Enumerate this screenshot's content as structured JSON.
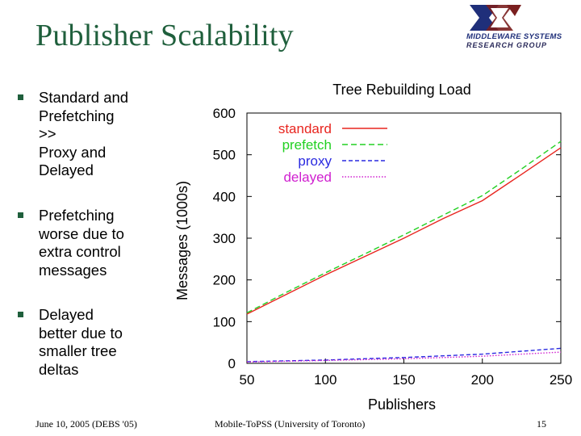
{
  "slide": {
    "title": "Publisher Scalability",
    "logo": {
      "line1": "MIDDLEWARE SYSTEMS",
      "line2": "RESEARCH GROUP"
    },
    "bullets": [
      "Standard and\nPrefetching\n      >>\nProxy and\nDelayed",
      "Prefetching\nworse due to\nextra control\nmessages",
      "Delayed\nbetter due to\nsmaller tree\ndeltas"
    ],
    "footer": {
      "left": "June 10, 2005 (DEBS '05)",
      "center": "Mobile-ToPSS (University of Toronto)",
      "page": "15"
    }
  },
  "colors": {
    "title": "#1f5f3c",
    "bullet": "#1f5f3c",
    "standard": "#e8251f",
    "prefetch": "#22d022",
    "proxy": "#2a2ae0",
    "delayed": "#d020d0"
  },
  "chart_data": {
    "type": "line",
    "title": "Tree Rebuilding Load",
    "xlabel": "Publishers",
    "ylabel": "Messages (1000s)",
    "xlim": [
      50,
      250
    ],
    "ylim": [
      0,
      600
    ],
    "xticks": [
      50,
      100,
      150,
      200,
      250
    ],
    "yticks": [
      0,
      100,
      200,
      300,
      400,
      500,
      600
    ],
    "legend_position": "top-right",
    "grid": false,
    "x": [
      50,
      75,
      100,
      125,
      150,
      175,
      200,
      225,
      250
    ],
    "series": [
      {
        "name": "standard",
        "color": "#e8251f",
        "dash": "solid",
        "values": [
          118,
          165,
          212,
          256,
          300,
          347,
          390,
          453,
          517
        ]
      },
      {
        "name": "prefetch",
        "color": "#22d022",
        "dash": "long",
        "values": [
          121,
          170,
          217,
          262,
          308,
          355,
          402,
          466,
          532
        ]
      },
      {
        "name": "proxy",
        "color": "#2a2ae0",
        "dash": "medium",
        "values": [
          4,
          6,
          8,
          11,
          14,
          18,
          22,
          29,
          36
        ]
      },
      {
        "name": "delayed",
        "color": "#d020d0",
        "dash": "dot",
        "values": [
          3,
          5,
          7,
          9,
          11,
          14,
          17,
          22,
          27
        ]
      }
    ]
  }
}
